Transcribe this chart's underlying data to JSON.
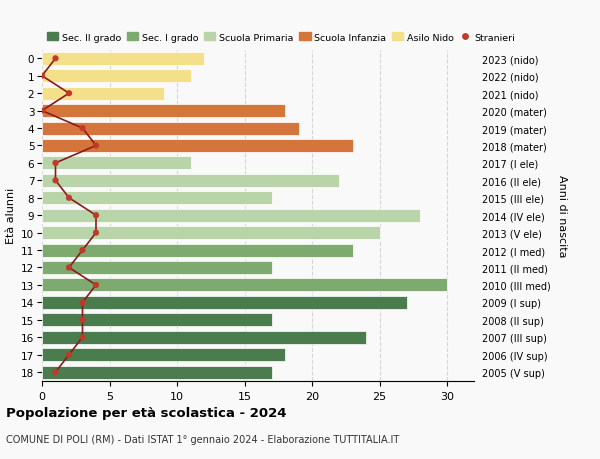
{
  "ages": [
    18,
    17,
    16,
    15,
    14,
    13,
    12,
    11,
    10,
    9,
    8,
    7,
    6,
    5,
    4,
    3,
    2,
    1,
    0
  ],
  "years": [
    "2005 (V sup)",
    "2006 (IV sup)",
    "2007 (III sup)",
    "2008 (II sup)",
    "2009 (I sup)",
    "2010 (III med)",
    "2011 (II med)",
    "2012 (I med)",
    "2013 (V ele)",
    "2014 (IV ele)",
    "2015 (III ele)",
    "2016 (II ele)",
    "2017 (I ele)",
    "2018 (mater)",
    "2019 (mater)",
    "2020 (mater)",
    "2021 (nido)",
    "2022 (nido)",
    "2023 (nido)"
  ],
  "bar_values": [
    17,
    18,
    24,
    17,
    27,
    30,
    17,
    23,
    25,
    28,
    17,
    22,
    11,
    23,
    19,
    18,
    9,
    11,
    12
  ],
  "stranieri": [
    1,
    2,
    3,
    3,
    3,
    4,
    2,
    3,
    4,
    4,
    2,
    1,
    1,
    4,
    3,
    0,
    2,
    0,
    1
  ],
  "bar_colors_list": [
    "#4a7c4e",
    "#4a7c4e",
    "#4a7c4e",
    "#4a7c4e",
    "#4a7c4e",
    "#7daa6f",
    "#7daa6f",
    "#7daa6f",
    "#b8d4a8",
    "#b8d4a8",
    "#b8d4a8",
    "#b8d4a8",
    "#b8d4a8",
    "#d4763b",
    "#d4763b",
    "#d4763b",
    "#f5e08a",
    "#f5e08a",
    "#f5e08a"
  ],
  "legend_labels": [
    "Sec. II grado",
    "Sec. I grado",
    "Scuola Primaria",
    "Scuola Infanzia",
    "Asilo Nido",
    "Stranieri"
  ],
  "legend_colors": [
    "#4a7c4e",
    "#7daa6f",
    "#b8d4a8",
    "#d4763b",
    "#f5e08a",
    "#c0392b"
  ],
  "title": "Popolazione per età scolastica - 2024",
  "subtitle": "COMUNE DI POLI (RM) - Dati ISTAT 1° gennaio 2024 - Elaborazione TUTTITALIA.IT",
  "ylabel_left": "Età alunni",
  "ylabel_right": "Anni di nascita",
  "xlim": [
    0,
    32
  ],
  "background_color": "#f9f9f9",
  "stranieri_color": "#c0392b",
  "stranieri_line_color": "#8b1a1a"
}
